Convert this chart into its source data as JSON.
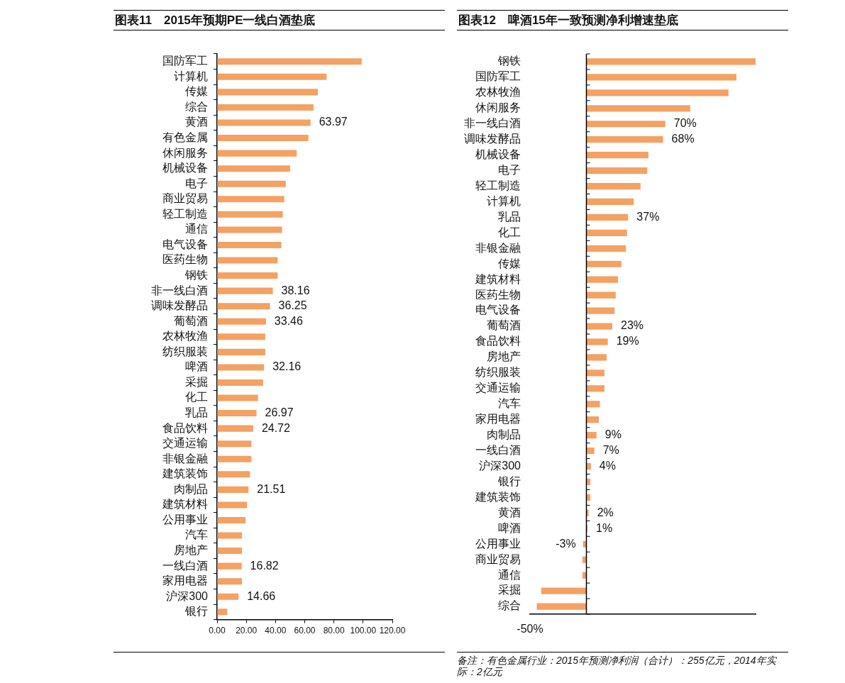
{
  "chart_data": [
    {
      "type": "bar",
      "orientation": "horizontal",
      "title": "图表11　2015年预期PE一线白酒垫底",
      "color": "#f4a163",
      "categories": [
        "国防军工",
        "计算机",
        "传媒",
        "综合",
        "黄酒",
        "有色金属",
        "休闲服务",
        "机械设备",
        "电子",
        "商业贸易",
        "轻工制造",
        "通信",
        "电气设备",
        "医药生物",
        "钢铁",
        "非一线白酒",
        "调味发酵品",
        "葡萄酒",
        "农林牧渔",
        "纺织服装",
        "啤酒",
        "采掘",
        "化工",
        "乳品",
        "食品饮料",
        "交通运输",
        "非银金融",
        "建筑装饰",
        "肉制品",
        "建筑材料",
        "公用事业",
        "汽车",
        "房地产",
        "一线白酒",
        "家用电器",
        "沪深300",
        "银行"
      ],
      "values": [
        99,
        75,
        69,
        66,
        63.97,
        62.5,
        54.5,
        50,
        47,
        46,
        45,
        44.5,
        44,
        41.5,
        41.5,
        38.16,
        36.25,
        33.46,
        33,
        33,
        32.16,
        31.5,
        28,
        26.97,
        24.72,
        23.5,
        23.5,
        22.5,
        21.51,
        20.5,
        19.5,
        17,
        17,
        16.82,
        17,
        14.66,
        7
      ],
      "value_labels": [
        null,
        null,
        null,
        null,
        "63.97",
        null,
        null,
        null,
        null,
        null,
        null,
        null,
        null,
        null,
        null,
        "38.16",
        "36.25",
        "33.46",
        null,
        null,
        "32.16",
        null,
        null,
        "26.97",
        "24.72",
        null,
        null,
        null,
        "21.51",
        null,
        null,
        null,
        null,
        "16.82",
        null,
        "14.66",
        null
      ],
      "xlim": [
        0,
        120
      ],
      "xticks": [
        {
          "value": 0,
          "label": "0.00"
        },
        {
          "value": 20,
          "label": "20.00"
        },
        {
          "value": 40,
          "label": "40.00"
        },
        {
          "value": 60,
          "label": "60.00"
        },
        {
          "value": 80,
          "label": "80.00"
        },
        {
          "value": 100,
          "label": "100.00"
        },
        {
          "value": 120,
          "label": "120.00"
        }
      ]
    },
    {
      "type": "bar",
      "orientation": "horizontal",
      "title": "图表12　啤酒15年一致预测净利增速垫底",
      "color": "#f4a163",
      "categories": [
        "钢铁",
        "国防军工",
        "农林牧渔",
        "休闲服务",
        "非一线白酒",
        "调味发酵品",
        "机械设备",
        "电子",
        "轻工制造",
        "计算机",
        "乳品",
        "化工",
        "非银金融",
        "传媒",
        "建筑材料",
        "医药生物",
        "电气设备",
        "葡萄酒",
        "食品饮料",
        "房地产",
        "纺织服装",
        "交通运输",
        "汽车",
        "家用电器",
        "肉制品",
        "一线白酒",
        "沪深300",
        "银行",
        "建筑装饰",
        "黄酒",
        "啤酒",
        "公用事业",
        "商业贸易",
        "通信",
        "采掘",
        "综合"
      ],
      "values": [
        150,
        133,
        126,
        92,
        70,
        68,
        55,
        54,
        48,
        42,
        37,
        36,
        35,
        31,
        28,
        26,
        25,
        23,
        19,
        18,
        16,
        16,
        12,
        11,
        9,
        7,
        4,
        3.5,
        3.5,
        2,
        1,
        -3,
        -3.5,
        -3.5,
        -40,
        -44
      ],
      "value_labels": [
        null,
        null,
        null,
        null,
        "70%",
        "68%",
        null,
        null,
        null,
        null,
        "37%",
        null,
        null,
        null,
        null,
        null,
        null,
        "23%",
        "19%",
        null,
        null,
        null,
        null,
        null,
        "9%",
        "7%",
        "4%",
        null,
        null,
        "2%",
        "1%",
        "-3%",
        null,
        null,
        null,
        null
      ],
      "xlim": [
        -50,
        150
      ],
      "annotations": [
        "-50%",
        "备注：有色金属行业：2015年预测净利润（合计）：255亿元，2014年实际：2亿元"
      ]
    }
  ]
}
